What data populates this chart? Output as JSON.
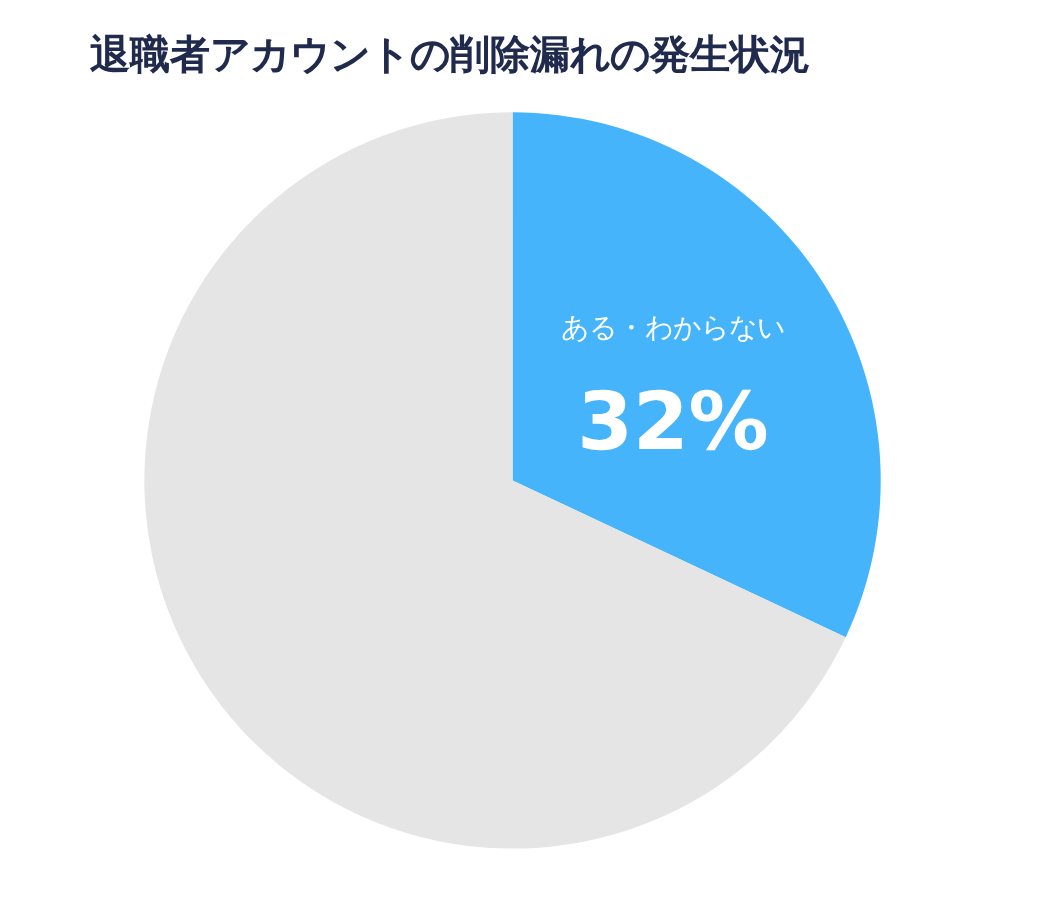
{
  "chart_data": {
    "type": "pie",
    "title": "退職者アカウントの削除漏れの発生状況",
    "categories": [
      "ある・わからない",
      null
    ],
    "values": [
      32,
      68
    ],
    "colors": [
      "#45b4fb",
      "#e5e5e5"
    ],
    "value_labels": [
      "32%",
      null
    ],
    "legend": false
  }
}
